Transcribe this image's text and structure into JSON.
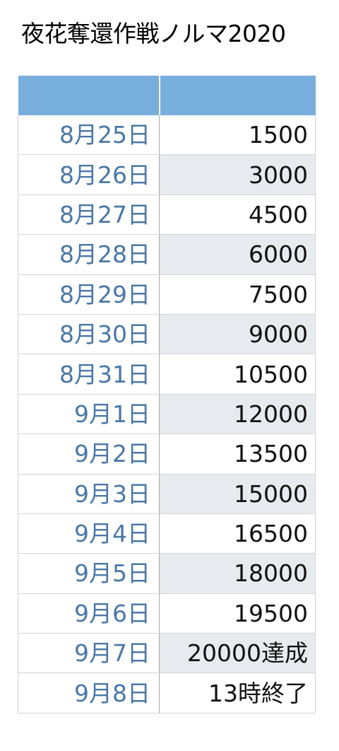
{
  "title": "夜花奪還作戦ノルマ2020",
  "table": {
    "header": {
      "date": "",
      "value": ""
    },
    "rows": [
      {
        "date": "8月25日",
        "value": "1500"
      },
      {
        "date": "8月26日",
        "value": "3000"
      },
      {
        "date": "8月27日",
        "value": "4500"
      },
      {
        "date": "8月28日",
        "value": "6000"
      },
      {
        "date": "8月29日",
        "value": "7500"
      },
      {
        "date": "8月30日",
        "value": "9000"
      },
      {
        "date": "8月31日",
        "value": "10500"
      },
      {
        "date": "9月1日",
        "value": "12000"
      },
      {
        "date": "9月2日",
        "value": "13500"
      },
      {
        "date": "9月3日",
        "value": "15000"
      },
      {
        "date": "9月4日",
        "value": "16500"
      },
      {
        "date": "9月5日",
        "value": "18000"
      },
      {
        "date": "9月6日",
        "value": "19500"
      },
      {
        "date": "9月7日",
        "value": "20000達成"
      },
      {
        "date": "9月8日",
        "value": "13時終了"
      }
    ]
  },
  "colors": {
    "header_fill": "#78aedb",
    "date_text": "#4a78a6",
    "value_text": "#111111",
    "stripe_fill": "#e7ebf0"
  }
}
